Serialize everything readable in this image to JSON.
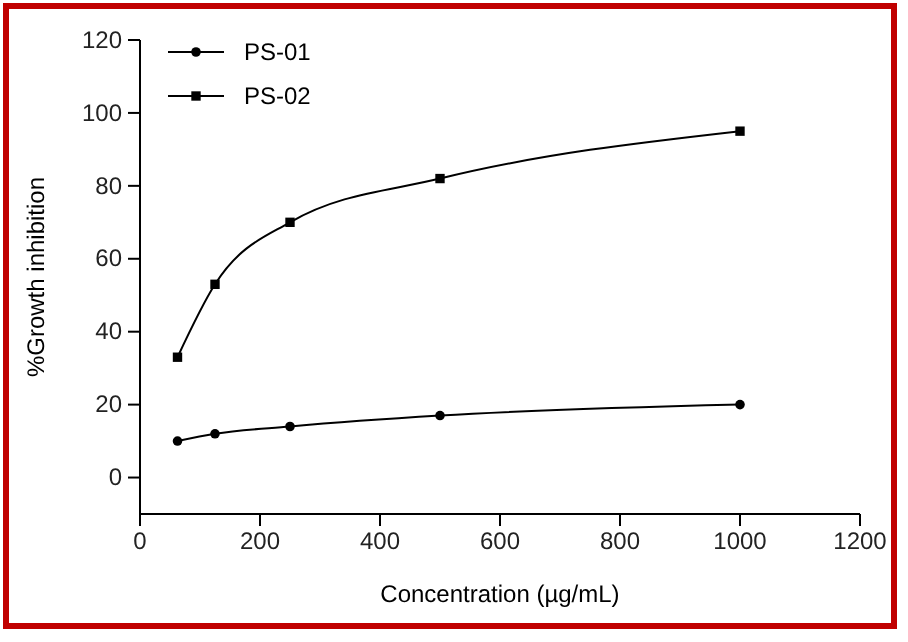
{
  "chart_data": {
    "type": "line",
    "xlabel": "Concentration (µg/mL)",
    "ylabel": "%Growth inhibition",
    "x": [
      62.5,
      125,
      250,
      500,
      1000
    ],
    "series": [
      {
        "name": "PS-01",
        "color": "#000000",
        "marker": "circle",
        "values": [
          10,
          12,
          14,
          17,
          20
        ]
      },
      {
        "name": "PS-02",
        "color": "#000000",
        "marker": "square",
        "values": [
          33,
          53,
          70,
          82,
          95
        ]
      }
    ],
    "xlim": [
      0,
      1200
    ],
    "xticks": [
      0,
      200,
      400,
      600,
      800,
      1000,
      1200
    ],
    "ylim": [
      -10,
      120
    ],
    "yticks": [
      0,
      20,
      40,
      60,
      80,
      100,
      120
    ],
    "grid": false,
    "legend": "top left",
    "line_style": "solid"
  }
}
